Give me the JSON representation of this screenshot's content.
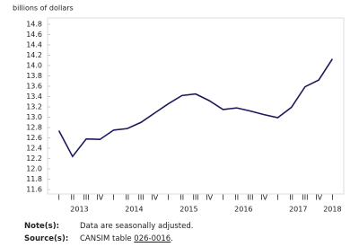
{
  "chart_data": {
    "type": "line",
    "y_label": "billions of dollars",
    "categories": [
      "I",
      "II",
      "III",
      "IV",
      "I",
      "II",
      "III",
      "IV",
      "I",
      "II",
      "III",
      "IV",
      "I",
      "II",
      "III",
      "IV",
      "I",
      "II",
      "III",
      "IV",
      "I"
    ],
    "years": [
      "2013",
      "2014",
      "2015",
      "2016",
      "2017",
      "2018"
    ],
    "values": [
      12.74,
      12.24,
      12.58,
      12.57,
      12.75,
      12.78,
      12.9,
      13.08,
      13.26,
      13.42,
      13.45,
      13.32,
      13.15,
      13.18,
      13.12,
      13.05,
      12.99,
      13.19,
      13.59,
      13.72,
      14.13
    ],
    "color": "#1b1a5c",
    "ylim": [
      11.6,
      14.8
    ],
    "yticks": [
      11.6,
      11.8,
      {
        "value": 12,
        "label": "12.0"
      },
      12.2,
      12.4,
      12.6,
      12.8,
      {
        "value": 13,
        "label": "13.0"
      },
      13.2,
      13.4,
      13.6,
      13.8,
      {
        "value": 14,
        "label": "14.0"
      },
      14.2,
      14.4,
      14.6,
      14.8
    ],
    "grid": false
  },
  "notes": {
    "note_label": "Note(s):",
    "note_text": "Data are seasonally adjusted.",
    "source_label": "Source(s):",
    "source_prefix": "CANSIM table ",
    "source_link": "026-0016",
    "source_suffix": "."
  }
}
